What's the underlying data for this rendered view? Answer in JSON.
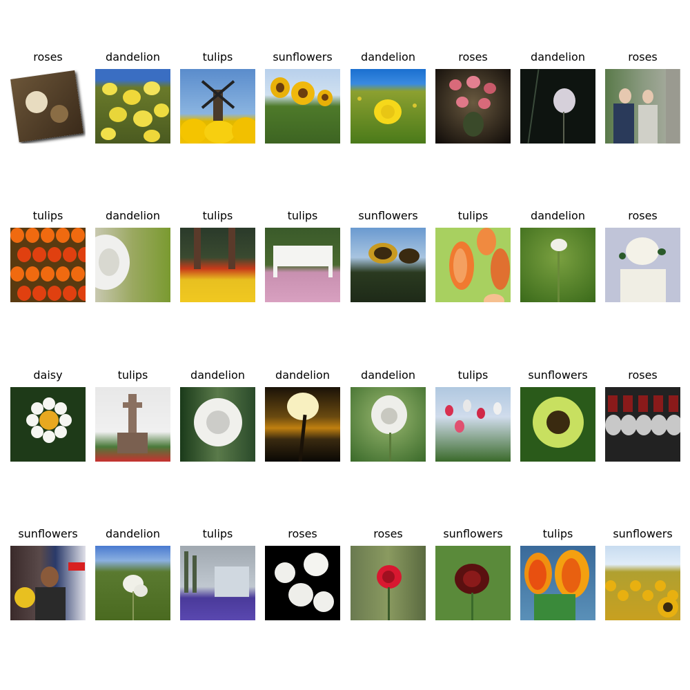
{
  "grid": {
    "rows": [
      [
        "roses",
        "dandelion",
        "tulips",
        "sunflowers",
        "dandelion",
        "roses",
        "dandelion",
        "roses"
      ],
      [
        "tulips",
        "dandelion",
        "tulips",
        "tulips",
        "sunflowers",
        "tulips",
        "dandelion",
        "roses"
      ],
      [
        "daisy",
        "tulips",
        "dandelion",
        "dandelion",
        "dandelion",
        "tulips",
        "sunflowers",
        "roses"
      ],
      [
        "sunflowers",
        "dandelion",
        "tulips",
        "roses",
        "roses",
        "sunflowers",
        "tulips",
        "sunflowers"
      ]
    ]
  }
}
